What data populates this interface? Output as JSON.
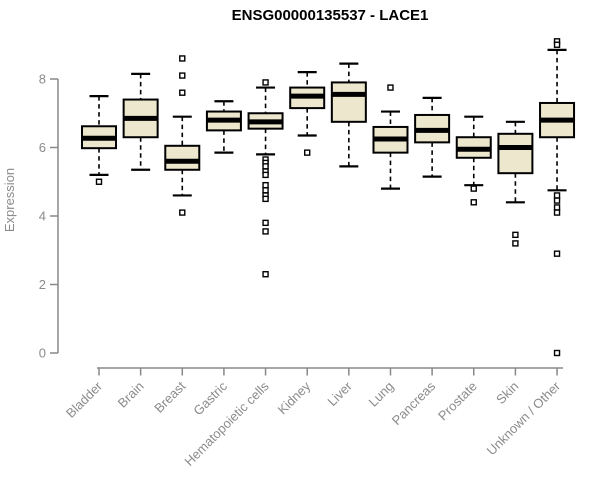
{
  "colors": {
    "box_fill": "#ECE7CD",
    "box_stroke": "#000000",
    "median_color": "#000000",
    "whisker_color": "#000000",
    "axis_color": "#888888",
    "tick_text_color": "#8b8b8b",
    "title_color": "#000000",
    "background": "#ffffff"
  },
  "chart_data": {
    "type": "boxplot",
    "title": "ENSG00000135537 - LACE1",
    "ylabel": "Expression",
    "xlabel": "",
    "ylim": [
      0,
      8
    ],
    "yticks": [
      0,
      2,
      4,
      6,
      8
    ],
    "grid": false,
    "legend": "none",
    "x_tick_rotation_deg": 45,
    "categories": [
      "Bladder",
      "Brain",
      "Breast",
      "Gastric",
      "Hematopoietic cells",
      "Kidney",
      "Liver",
      "Lung",
      "Pancreas",
      "Prostate",
      "Skin",
      "Unknown / Other"
    ],
    "series": [
      {
        "name": "Bladder",
        "whisker_low": 5.2,
        "q1": 5.98,
        "median": 6.27,
        "q3": 6.62,
        "whisker_high": 7.5,
        "outliers": [
          5.0
        ]
      },
      {
        "name": "Brain",
        "whisker_low": 5.35,
        "q1": 6.3,
        "median": 6.85,
        "q3": 7.4,
        "whisker_high": 8.15,
        "outliers": []
      },
      {
        "name": "Breast",
        "whisker_low": 4.6,
        "q1": 5.35,
        "median": 5.6,
        "q3": 6.05,
        "whisker_high": 6.9,
        "outliers": [
          8.6,
          8.1,
          7.6,
          4.1
        ]
      },
      {
        "name": "Gastric",
        "whisker_low": 5.85,
        "q1": 6.5,
        "median": 6.8,
        "q3": 7.05,
        "whisker_high": 7.35,
        "outliers": []
      },
      {
        "name": "Hematopoietic cells",
        "whisker_low": 5.8,
        "q1": 6.55,
        "median": 6.75,
        "q3": 7.0,
        "whisker_high": 7.75,
        "outliers": [
          7.9,
          5.65,
          5.55,
          5.45,
          5.3,
          5.2,
          4.9,
          4.75,
          4.6,
          4.5,
          3.8,
          3.55,
          2.3
        ]
      },
      {
        "name": "Kidney",
        "whisker_low": 6.35,
        "q1": 7.15,
        "median": 7.5,
        "q3": 7.75,
        "whisker_high": 8.2,
        "outliers": [
          5.85
        ]
      },
      {
        "name": "Liver",
        "whisker_low": 5.45,
        "q1": 6.75,
        "median": 7.55,
        "q3": 7.9,
        "whisker_high": 8.45,
        "outliers": []
      },
      {
        "name": "Lung",
        "whisker_low": 4.8,
        "q1": 5.85,
        "median": 6.25,
        "q3": 6.6,
        "whisker_high": 7.05,
        "outliers": [
          7.75
        ]
      },
      {
        "name": "Pancreas",
        "whisker_low": 5.15,
        "q1": 6.15,
        "median": 6.5,
        "q3": 6.95,
        "whisker_high": 7.45,
        "outliers": []
      },
      {
        "name": "Prostate",
        "whisker_low": 4.9,
        "q1": 5.7,
        "median": 5.95,
        "q3": 6.3,
        "whisker_high": 6.9,
        "outliers": [
          4.8,
          4.4
        ]
      },
      {
        "name": "Skin",
        "whisker_low": 4.4,
        "q1": 5.25,
        "median": 6.0,
        "q3": 6.4,
        "whisker_high": 6.75,
        "outliers": [
          3.45,
          3.2
        ]
      },
      {
        "name": "Unknown / Other",
        "whisker_low": 4.75,
        "q1": 6.3,
        "median": 6.8,
        "q3": 7.3,
        "whisker_high": 8.85,
        "outliers": [
          9.1,
          9.0,
          4.6,
          4.45,
          4.25,
          4.1,
          2.9,
          0.0
        ]
      }
    ]
  }
}
